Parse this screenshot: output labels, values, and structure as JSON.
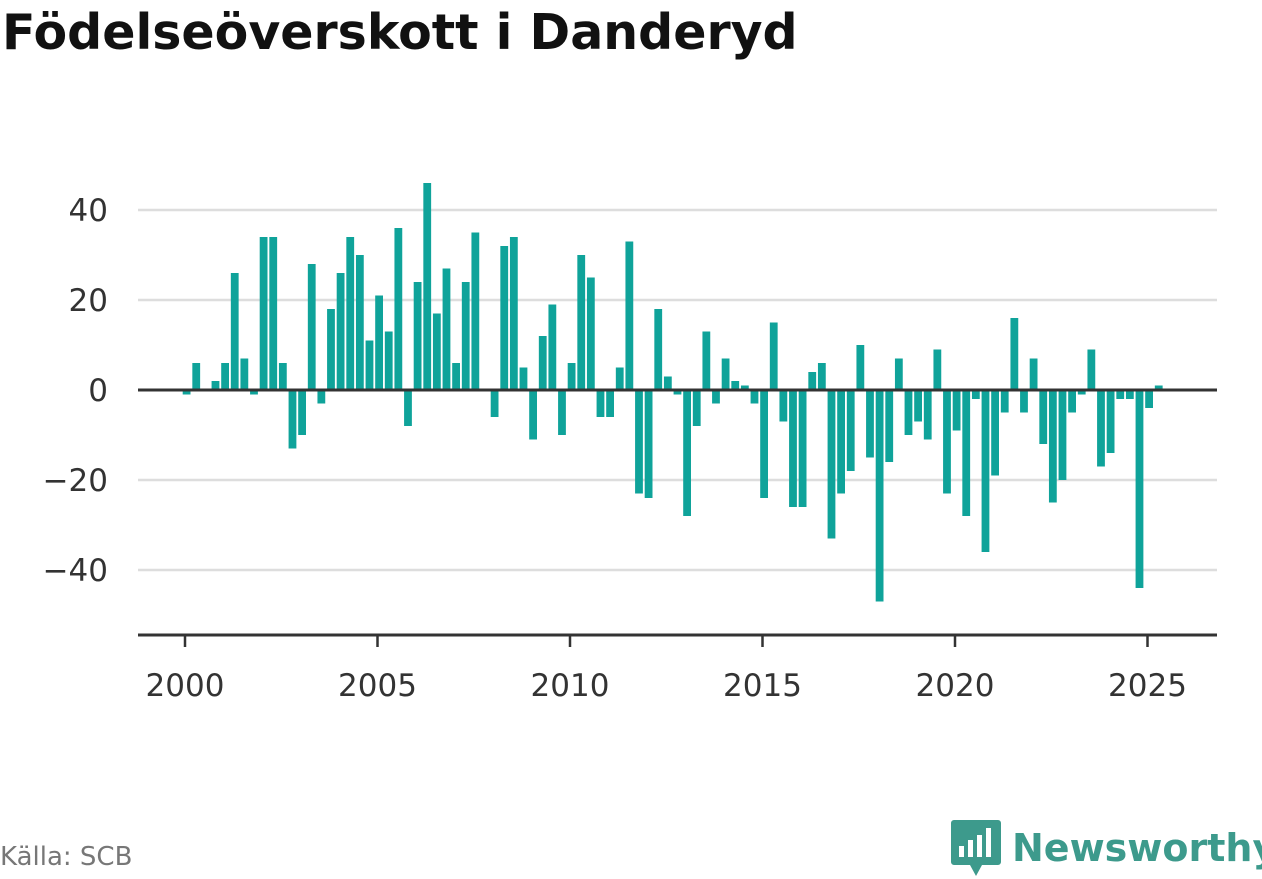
{
  "title": "Födelseöverskott i Danderyd",
  "source": "Källa: SCB",
  "brand": "Newsworthy",
  "colors": {
    "bar": "#0fa39a",
    "grid": "#dddddd",
    "axis": "#333333",
    "brand": "#3d9a8c"
  },
  "chart_data": {
    "type": "bar",
    "title": "Födelseöverskott i Danderyd",
    "xlabel": "",
    "ylabel": "",
    "x_ticks": [
      2000,
      2005,
      2010,
      2015,
      2020,
      2025
    ],
    "x_tick_labels": [
      "2000",
      "2005",
      "2010",
      "2015",
      "2020",
      "2025"
    ],
    "y_ticks": [
      40,
      20,
      0,
      -20,
      -40
    ],
    "y_tick_labels": [
      "40",
      "20",
      "0",
      "−20",
      "−40"
    ],
    "ylim": [
      -53,
      53
    ],
    "xlim": [
      1998.67,
      2026.83
    ],
    "grid": true,
    "legend": "none",
    "x": [
      "2000-01",
      "2000-04",
      "2000-07",
      "2000-10",
      "2001-01",
      "2001-04",
      "2001-07",
      "2001-10",
      "2002-01",
      "2002-04",
      "2002-07",
      "2002-10",
      "2003-01",
      "2003-04",
      "2003-07",
      "2003-10",
      "2004-01",
      "2004-04",
      "2004-07",
      "2004-10",
      "2005-01",
      "2005-04",
      "2005-07",
      "2005-10",
      "2006-01",
      "2006-04",
      "2006-07",
      "2006-10",
      "2007-01",
      "2007-04",
      "2007-07",
      "2007-10",
      "2008-01",
      "2008-04",
      "2008-07",
      "2008-10",
      "2009-01",
      "2009-04",
      "2009-07",
      "2009-10",
      "2010-01",
      "2010-04",
      "2010-07",
      "2010-10",
      "2011-01",
      "2011-04",
      "2011-07",
      "2011-10",
      "2012-01",
      "2012-04",
      "2012-07",
      "2012-10",
      "2013-01",
      "2013-04",
      "2013-07",
      "2013-10",
      "2014-01",
      "2014-04",
      "2014-07",
      "2014-10",
      "2015-01",
      "2015-04",
      "2015-07",
      "2015-10",
      "2016-01",
      "2016-04",
      "2016-07",
      "2016-10",
      "2017-01",
      "2017-04",
      "2017-07",
      "2017-10",
      "2018-01",
      "2018-04",
      "2018-07",
      "2018-10",
      "2019-01",
      "2019-04",
      "2019-07",
      "2019-10",
      "2020-01",
      "2020-04",
      "2020-07",
      "2020-10",
      "2021-01",
      "2021-04",
      "2021-07",
      "2021-10",
      "2022-01",
      "2022-04",
      "2022-07",
      "2022-10",
      "2023-01",
      "2023-04",
      "2023-07",
      "2023-10",
      "2024-01",
      "2024-04",
      "2024-07",
      "2024-10",
      "2025-01",
      "2025-04"
    ],
    "values": [
      -1,
      6,
      0,
      2,
      6,
      26,
      7,
      -1,
      34,
      34,
      6,
      -13,
      -10,
      28,
      -3,
      18,
      26,
      34,
      30,
      11,
      21,
      13,
      36,
      -8,
      24,
      46,
      17,
      27,
      6,
      24,
      35,
      0,
      -6,
      32,
      34,
      5,
      -11,
      12,
      19,
      -10,
      6,
      30,
      25,
      -6,
      -6,
      5,
      33,
      -23,
      -24,
      18,
      3,
      -1,
      -28,
      -8,
      13,
      -3,
      7,
      2,
      1,
      -3,
      -24,
      15,
      -7,
      -26,
      -26,
      4,
      6,
      -33,
      -23,
      -18,
      10,
      -15,
      -47,
      -16,
      7,
      -10,
      -7,
      -11,
      9,
      -23,
      -9,
      -28,
      -2,
      -36,
      -19,
      -5,
      16,
      -5,
      7,
      -12,
      -25,
      -20,
      -5,
      -1,
      9,
      -17,
      -14,
      -2,
      -2,
      -44,
      -4,
      1
    ]
  }
}
